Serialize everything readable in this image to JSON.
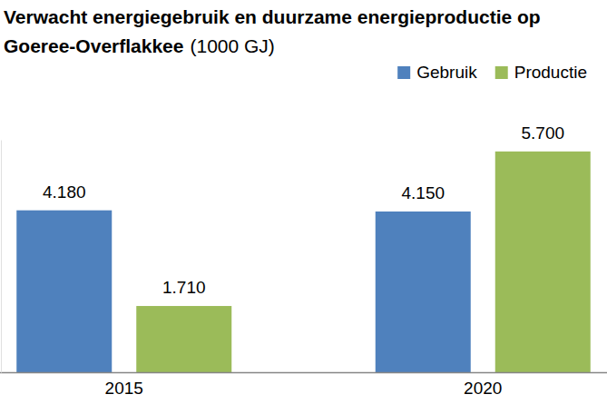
{
  "chart_data": {
    "type": "bar",
    "title": "Verwacht energiegebruik en duurzame energieproductie op Goeree-Overflakkee",
    "subtitle": "(1000 GJ)",
    "categories": [
      "2015",
      "2020"
    ],
    "series": [
      {
        "name": "Gebruik",
        "color": "#4f81bd",
        "values": [
          4180,
          4150
        ],
        "value_labels": [
          "4.180",
          "4.150"
        ]
      },
      {
        "name": "Productie",
        "color": "#9bbb59",
        "values": [
          1710,
          5700
        ],
        "value_labels": [
          "1.710",
          "5.700"
        ]
      }
    ],
    "ylim": [
      0,
      6000
    ],
    "yticks": [
      0
    ],
    "grid": false,
    "legend": "top-right",
    "data_labels": true,
    "tick_labels": "x"
  }
}
